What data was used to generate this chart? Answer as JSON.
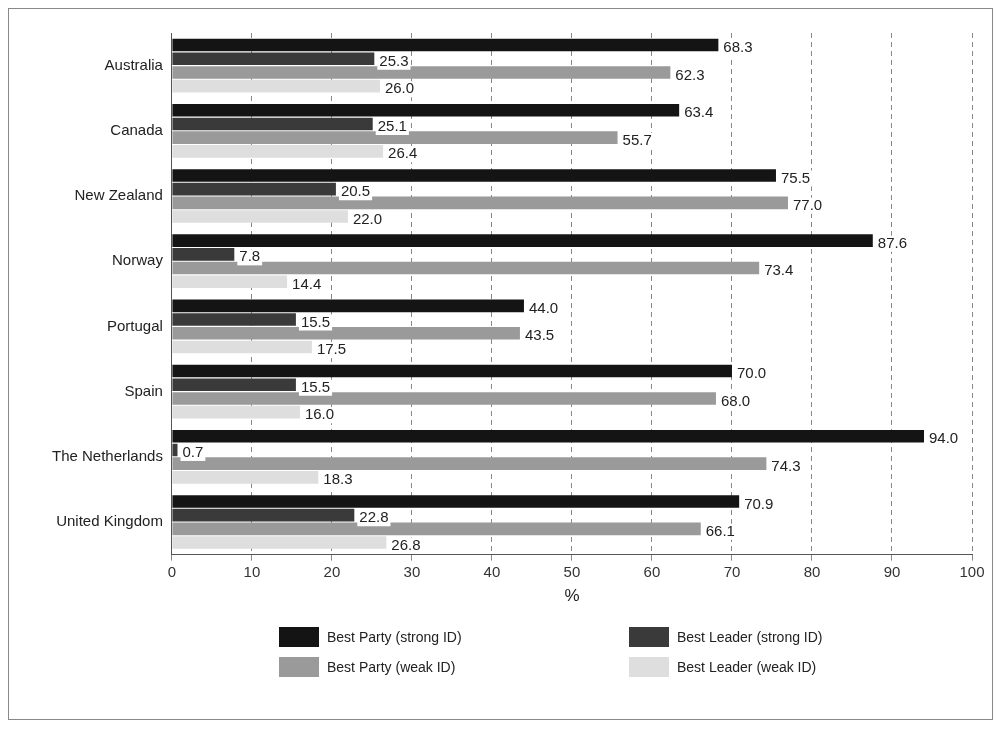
{
  "chart_data": {
    "type": "bar",
    "orientation": "horizontal",
    "xlabel": "%",
    "categories": [
      "Australia",
      "Canada",
      "New Zealand",
      "Norway",
      "Portugal",
      "Spain",
      "The Netherlands",
      "United Kingdom"
    ],
    "series": [
      {
        "name": "Best Party (strong ID)",
        "color": "#141414",
        "values": [
          68.3,
          63.4,
          75.5,
          87.6,
          44.0,
          70.0,
          94.0,
          70.9
        ],
        "value_labels": [
          "68.3",
          "63.4",
          "75.5",
          "87.6",
          "44.0",
          "70.0",
          "94.0",
          "70.9"
        ]
      },
      {
        "name": "Best Leader (strong ID)",
        "color": "#3a3a3a",
        "values": [
          25.3,
          25.1,
          20.5,
          7.8,
          15.5,
          15.5,
          0.7,
          22.8
        ],
        "value_labels": [
          "25.3",
          "25.1",
          "20.5",
          "7.8",
          "15.5",
          "15.5",
          "0.7",
          "22.8"
        ]
      },
      {
        "name": "Best Party (weak ID)",
        "color": "#9a9a9a",
        "values": [
          62.3,
          55.7,
          77.0,
          73.4,
          43.5,
          68.0,
          74.3,
          66.1
        ],
        "value_labels": [
          "62.3",
          "55.7",
          "77.0",
          "73.4",
          "43.5",
          "68.0",
          "74.3",
          "66.1"
        ]
      },
      {
        "name": "Best Leader (weak ID)",
        "color": "#dedede",
        "values": [
          26.0,
          26.4,
          22.0,
          14.4,
          17.5,
          16.0,
          18.3,
          26.8
        ],
        "value_labels": [
          "26.0",
          "26.4",
          "22.0",
          "14.4",
          "17.5",
          "16.0",
          "18.3",
          "26.8"
        ]
      }
    ],
    "xlim": [
      0,
      100
    ],
    "xticks": [
      0,
      10,
      20,
      30,
      40,
      50,
      60,
      70,
      80,
      90,
      100
    ],
    "grid": "x",
    "legend": "bottom"
  }
}
